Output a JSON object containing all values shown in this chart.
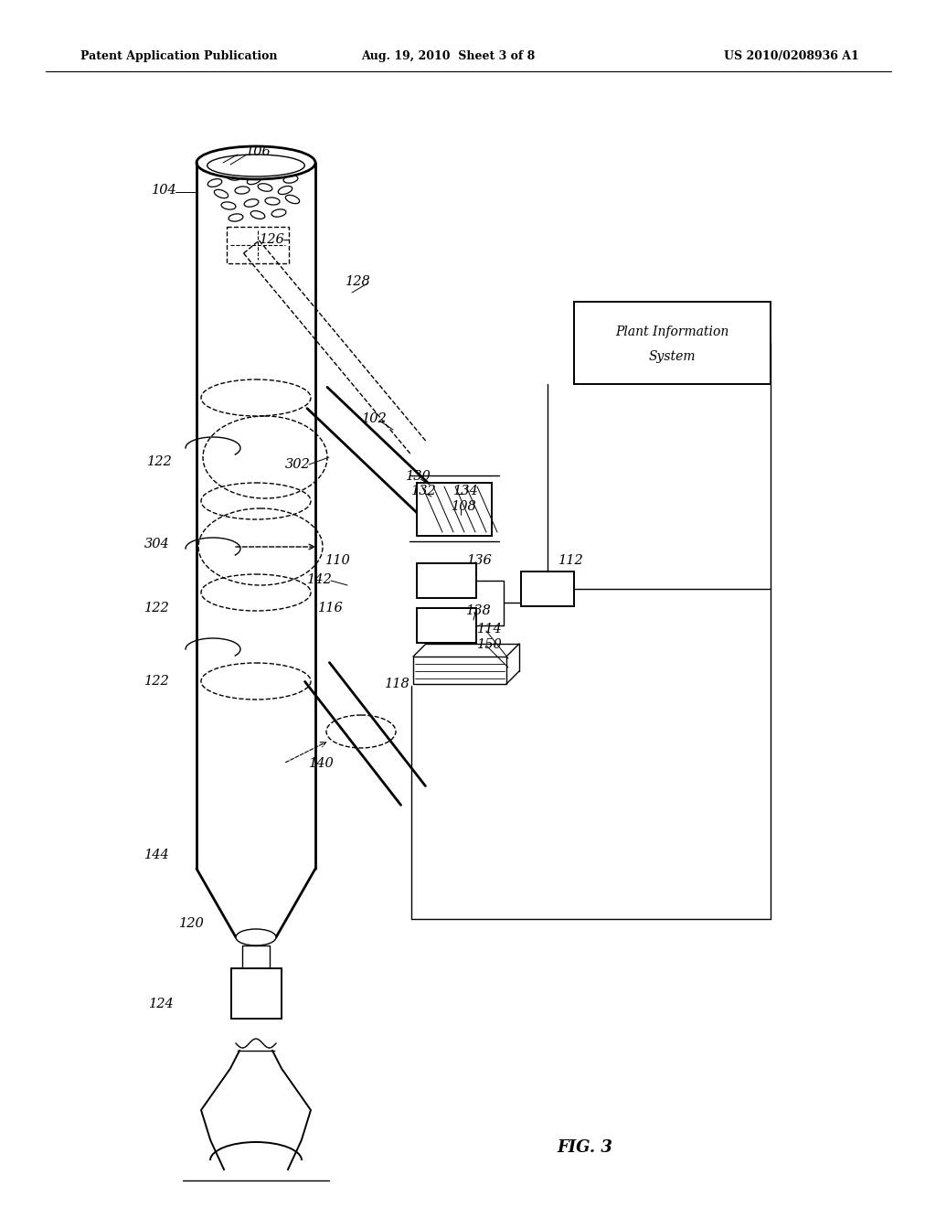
{
  "bg_color": "#ffffff",
  "line_color": "#000000",
  "header_left": "Patent Application Publication",
  "header_center": "Aug. 19, 2010  Sheet 3 of 8",
  "header_right": "US 2010/0208936 A1",
  "fig_label": "FIG. 3",
  "plant_line1": "Plant Information",
  "plant_line2": "System"
}
